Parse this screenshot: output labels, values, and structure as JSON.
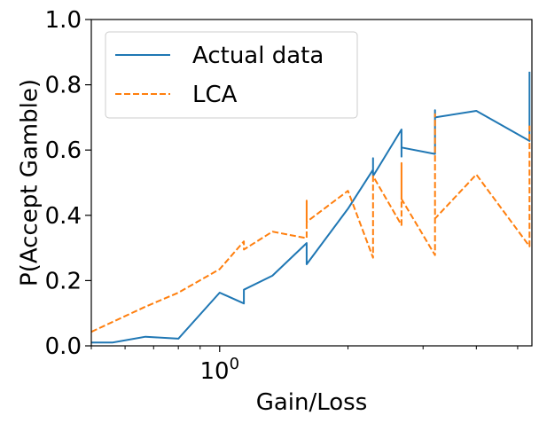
{
  "chart_data": {
    "type": "line",
    "xlabel": "Gain/Loss",
    "ylabel": "P(Accept Gamble)",
    "x_scale": "log",
    "xlim": [
      0.5,
      5.4
    ],
    "ylim": [
      0.0,
      1.0
    ],
    "grid": false,
    "legend_position": "top-left",
    "x_major_ticks": [
      {
        "value": 1.0,
        "base": "10",
        "exponent": "0"
      }
    ],
    "x_minor_ticks": [
      0.5,
      0.6,
      0.7,
      0.8,
      0.9,
      2,
      3,
      4,
      5
    ],
    "y_ticks": [
      {
        "value": 0.0,
        "label": "0.0"
      },
      {
        "value": 0.2,
        "label": "0.2"
      },
      {
        "value": 0.4,
        "label": "0.4"
      },
      {
        "value": 0.6,
        "label": "0.6"
      },
      {
        "value": 0.8,
        "label": "0.8"
      },
      {
        "value": 1.0,
        "label": "1.0"
      }
    ],
    "series": [
      {
        "name": "Actual data",
        "color": "#1f77b4",
        "dash": "solid",
        "points": [
          [
            0.5,
            0.01
          ],
          [
            0.56,
            0.01
          ],
          [
            0.67,
            0.028
          ],
          [
            0.8,
            0.022
          ],
          [
            1.0,
            0.163
          ],
          [
            1.14,
            0.13
          ],
          [
            1.14,
            0.172
          ],
          [
            1.33,
            0.215
          ],
          [
            1.6,
            0.315
          ],
          [
            1.6,
            0.25
          ],
          [
            2.0,
            0.42
          ],
          [
            2.29,
            0.54
          ],
          [
            2.29,
            0.575
          ],
          [
            2.29,
            0.52
          ],
          [
            2.67,
            0.663
          ],
          [
            2.67,
            0.58
          ],
          [
            2.67,
            0.608
          ],
          [
            3.2,
            0.588
          ],
          [
            3.2,
            0.722
          ],
          [
            3.2,
            0.7
          ],
          [
            4.0,
            0.72
          ],
          [
            5.33,
            0.628
          ],
          [
            5.33,
            0.84
          ]
        ]
      },
      {
        "name": "LCA",
        "color": "#ff7f0e",
        "dash": "dashed",
        "points": [
          [
            0.5,
            0.043
          ],
          [
            0.67,
            0.12
          ],
          [
            0.8,
            0.163
          ],
          [
            1.0,
            0.235
          ],
          [
            1.14,
            0.32
          ],
          [
            1.14,
            0.295
          ],
          [
            1.33,
            0.35
          ],
          [
            1.6,
            0.33
          ],
          [
            1.6,
            0.445
          ],
          [
            1.6,
            0.38
          ],
          [
            2.0,
            0.475
          ],
          [
            2.29,
            0.27
          ],
          [
            2.29,
            0.52
          ],
          [
            2.67,
            0.37
          ],
          [
            2.67,
            0.56
          ],
          [
            2.67,
            0.45
          ],
          [
            3.2,
            0.278
          ],
          [
            3.2,
            0.71
          ],
          [
            3.2,
            0.39
          ],
          [
            4.0,
            0.525
          ],
          [
            5.33,
            0.305
          ],
          [
            5.33,
            0.675
          ]
        ]
      }
    ]
  }
}
